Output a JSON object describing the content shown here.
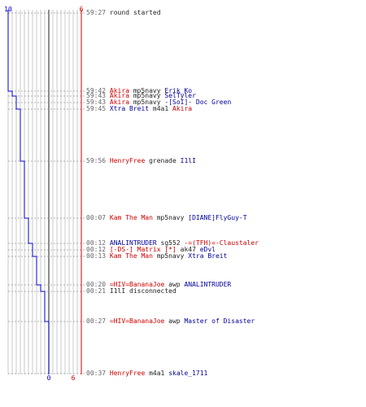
{
  "header": {
    "blue_score_start": "10",
    "red_score_start": "6"
  },
  "footer": {
    "blue_score_end": "0",
    "red_score_end": "6"
  },
  "colors": {
    "blue": "#0000cc",
    "red": "#cc0000",
    "grid": "#c8c8c8",
    "axis": "#404040",
    "dash": "#999999",
    "time": "#666666"
  },
  "score_track": {
    "blue": [
      {
        "time": "59:27",
        "score": 10
      },
      {
        "time": "59:42",
        "score": 9
      },
      {
        "time": "59:43",
        "score": 8
      },
      {
        "time": "59:45",
        "score": 7
      },
      {
        "time": "59:56",
        "score": 6
      },
      {
        "time": "00:07",
        "score": 5
      },
      {
        "time": "00:12",
        "score": 4
      },
      {
        "time": "00:13",
        "score": 3
      },
      {
        "time": "00:20",
        "score": 2
      },
      {
        "time": "00:21",
        "score": 1
      },
      {
        "time": "00:27",
        "score": 0
      },
      {
        "time": "00:37",
        "score": 0
      }
    ],
    "red": [
      {
        "time": "59:27",
        "score": 6
      },
      {
        "time": "59:45",
        "score": 6
      },
      {
        "time": "00:37",
        "score": 6
      }
    ]
  },
  "log": [
    {
      "time": "59:27",
      "parts": [
        {
          "text": "round started",
          "color": "plain"
        }
      ]
    },
    {
      "time": "59:42",
      "parts": [
        {
          "text": "Akira",
          "color": "red"
        },
        {
          "text": " mp5navy ",
          "color": "plain"
        },
        {
          "text": "Erik_Ko",
          "color": "blue"
        }
      ]
    },
    {
      "time": "59:43",
      "parts": [
        {
          "text": "Akira",
          "color": "red"
        },
        {
          "text": " mp5navy ",
          "color": "plain"
        },
        {
          "text": "SelTyler",
          "color": "blue"
        }
      ]
    },
    {
      "time": "59:43",
      "parts": [
        {
          "text": "Akira",
          "color": "red"
        },
        {
          "text": " mp5navy ",
          "color": "plain"
        },
        {
          "text": "-[SoI]- Doc Green",
          "color": "blue"
        }
      ]
    },
    {
      "time": "59:45",
      "parts": [
        {
          "text": "Xtra Breit",
          "color": "blue"
        },
        {
          "text": " m4a1 ",
          "color": "plain"
        },
        {
          "text": "Akira",
          "color": "red"
        }
      ]
    },
    {
      "time": "59:56",
      "parts": [
        {
          "text": "HenryFree",
          "color": "red"
        },
        {
          "text": " grenade ",
          "color": "plain"
        },
        {
          "text": "I1lI",
          "color": "blue"
        }
      ]
    },
    {
      "time": "00:07",
      "parts": [
        {
          "text": "Kam The Man",
          "color": "red"
        },
        {
          "text": " mp5navy ",
          "color": "plain"
        },
        {
          "text": "[DIANE]FlyGuy-T",
          "color": "blue"
        }
      ]
    },
    {
      "time": "00:12",
      "parts": [
        {
          "text": "ANALINTRUDER",
          "color": "blue"
        },
        {
          "text": " sg552 ",
          "color": "plain"
        },
        {
          "text": "-=(TFH)=-Claustaler",
          "color": "red"
        }
      ]
    },
    {
      "time": "00:12",
      "parts": [
        {
          "text": "[-DS-] Matrix [*]",
          "color": "red"
        },
        {
          "text": " ak47 ",
          "color": "plain"
        },
        {
          "text": "eDvl",
          "color": "blue"
        }
      ]
    },
    {
      "time": "00:13",
      "parts": [
        {
          "text": "Kam The Man",
          "color": "red"
        },
        {
          "text": " mp5navy ",
          "color": "plain"
        },
        {
          "text": "Xtra Breit",
          "color": "blue"
        }
      ]
    },
    {
      "time": "00:20",
      "parts": [
        {
          "text": "=HIV=BananaJoe",
          "color": "red"
        },
        {
          "text": " awp ",
          "color": "plain"
        },
        {
          "text": "ANALINTRUDER",
          "color": "blue"
        }
      ]
    },
    {
      "time": "00:21",
      "parts": [
        {
          "text": "I1lI disconnected",
          "color": "plain"
        }
      ]
    },
    {
      "time": "00:27",
      "parts": [
        {
          "text": "=HIV=BananaJoe",
          "color": "red"
        },
        {
          "text": " awp ",
          "color": "plain"
        },
        {
          "text": "Master of Disaster",
          "color": "blue"
        }
      ]
    },
    {
      "time": "00:37",
      "parts": [
        {
          "text": "HenryFree",
          "color": "red"
        },
        {
          "text": " m4a1 ",
          "color": "plain"
        },
        {
          "text": "skale_1711",
          "color": "blue"
        }
      ]
    }
  ]
}
